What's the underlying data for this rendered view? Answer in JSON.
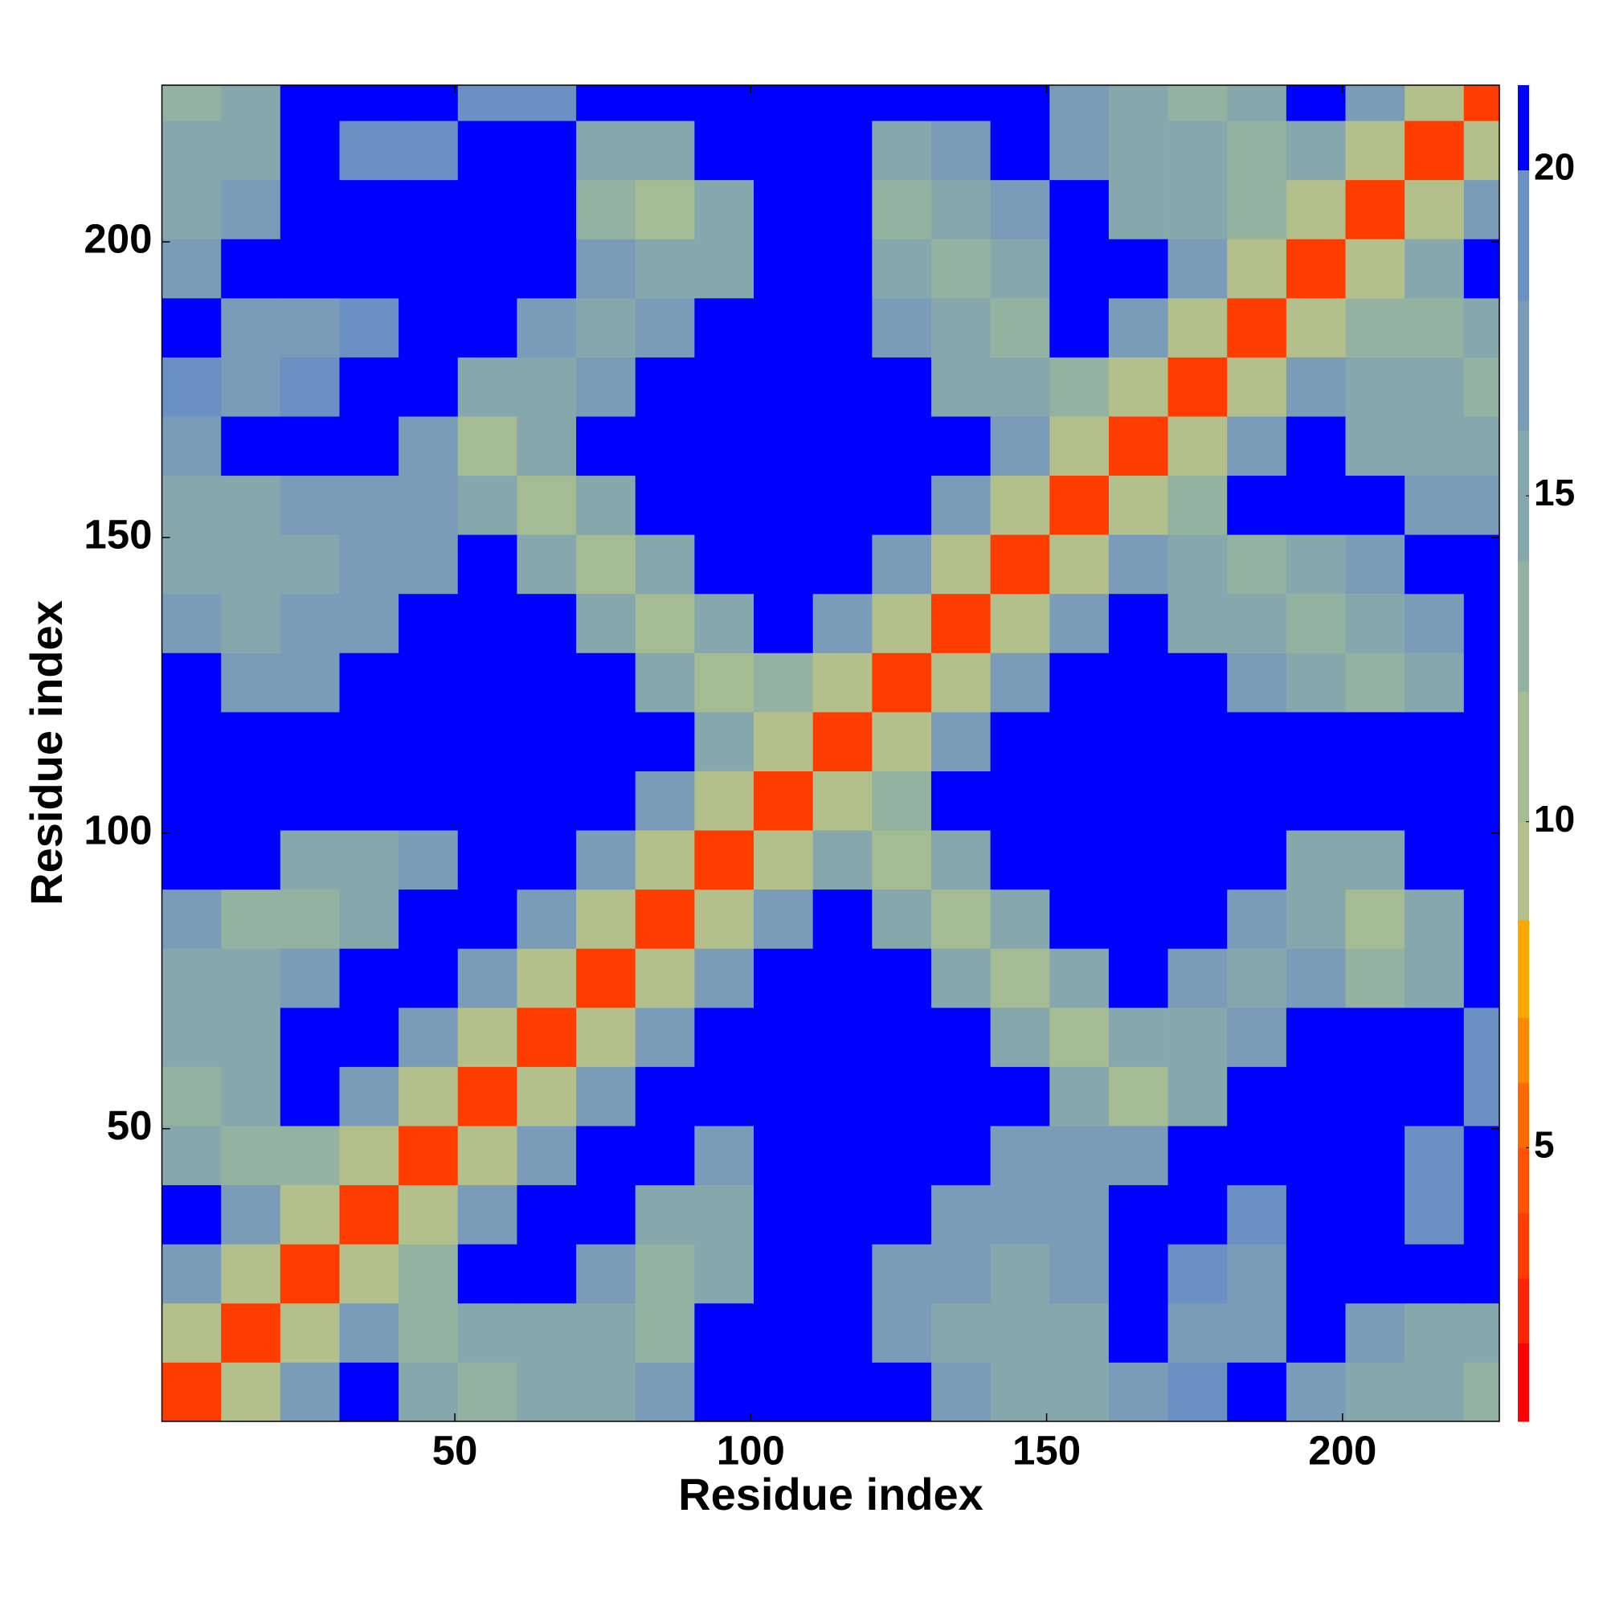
{
  "chart_data": {
    "type": "heatmap",
    "xlabel": "Residue index",
    "ylabel": "Residue index",
    "xlim": [
      0.5,
      226.5
    ],
    "ylim": [
      0.5,
      226.5
    ],
    "xticks": [
      50,
      100,
      150,
      200
    ],
    "yticks": [
      50,
      100,
      150,
      200
    ],
    "xbins": [
      0.5,
      10.5,
      20.5,
      30.5,
      40.5,
      50.5,
      60.5,
      70.5,
      80.5,
      90.5,
      100.5,
      110.5,
      120.5,
      130.5,
      140.5,
      150.5,
      160.5,
      170.5,
      180.5,
      190.5,
      200.5,
      210.5,
      220.5,
      226.5
    ],
    "ybins": [
      0.5,
      10.5,
      20.5,
      30.5,
      40.5,
      50.5,
      60.5,
      70.5,
      80.5,
      90.5,
      100.5,
      110.5,
      120.5,
      130.5,
      140.5,
      150.5,
      160.5,
      170.5,
      180.5,
      190.5,
      200.5,
      210.5,
      220.5,
      226.5
    ],
    "zlim": [
      0.8,
      21.3
    ],
    "zticks": [
      5,
      10,
      15,
      20
    ],
    "colorscale": [
      [
        2,
        "#ff0000"
      ],
      [
        3,
        "#ff2400"
      ],
      [
        4,
        "#ff3c00"
      ],
      [
        5,
        "#ff5200"
      ],
      [
        6,
        "#ff6a00"
      ],
      [
        7,
        "#ff8a00"
      ],
      [
        8.5,
        "#ffa800"
      ],
      [
        10,
        "#b3c08b"
      ],
      [
        12,
        "#a4bb94"
      ],
      [
        14,
        "#94b2a0"
      ],
      [
        16,
        "#86a8ad"
      ],
      [
        18,
        "#7a9cb9"
      ],
      [
        20,
        "#6a90c4"
      ],
      [
        21.3,
        "#0000ff"
      ]
    ],
    "z": [
      [
        4,
        10,
        18,
        21,
        16,
        13,
        15,
        16,
        18,
        21,
        21,
        21,
        21,
        17,
        16,
        16,
        18,
        19,
        21,
        18,
        15,
        15,
        14
      ],
      [
        10,
        4,
        10,
        18,
        13,
        15,
        16,
        15,
        14,
        21,
        21,
        21,
        18,
        16,
        15,
        16,
        21,
        18,
        18,
        21,
        17,
        16,
        16
      ],
      [
        18,
        10,
        4,
        10,
        14,
        21,
        21,
        17,
        14,
        15,
        21,
        21,
        18,
        17,
        16,
        17,
        21,
        19,
        18,
        21,
        21,
        21,
        21
      ],
      [
        21,
        18,
        10,
        4,
        10,
        18,
        21,
        21,
        16,
        16,
        21,
        21,
        21,
        17,
        17,
        17,
        21,
        21,
        19,
        21,
        21,
        19,
        21
      ],
      [
        16,
        13,
        14,
        10,
        4,
        10,
        18,
        21,
        21,
        18,
        21,
        21,
        21,
        21,
        18,
        18,
        18,
        21,
        21,
        21,
        21,
        19,
        21
      ],
      [
        13,
        15,
        21,
        18,
        10,
        4,
        10,
        18,
        21,
        21,
        21,
        21,
        21,
        21,
        21,
        15,
        12,
        16,
        21,
        21,
        21,
        21,
        19
      ],
      [
        15,
        16,
        21,
        21,
        18,
        10,
        4,
        10,
        18,
        21,
        21,
        21,
        21,
        21,
        15,
        12,
        16,
        15,
        17,
        21,
        21,
        21,
        19
      ],
      [
        16,
        15,
        17,
        21,
        21,
        18,
        10,
        4,
        10,
        18,
        21,
        21,
        21,
        15,
        12,
        16,
        21,
        17,
        15,
        17,
        14,
        16,
        21
      ],
      [
        18,
        14,
        14,
        16,
        21,
        21,
        18,
        10,
        4,
        10,
        18,
        21,
        15,
        12,
        16,
        21,
        21,
        21,
        17,
        15,
        12,
        15,
        21
      ],
      [
        21,
        21,
        15,
        16,
        18,
        21,
        21,
        18,
        10,
        4,
        10,
        15,
        12,
        16,
        21,
        21,
        21,
        21,
        21,
        16,
        15,
        21,
        21
      ],
      [
        21,
        21,
        21,
        21,
        21,
        21,
        21,
        21,
        18,
        10,
        4,
        10,
        14,
        21,
        21,
        21,
        21,
        21,
        21,
        21,
        21,
        21,
        21
      ],
      [
        21,
        21,
        21,
        21,
        21,
        21,
        21,
        21,
        21,
        15,
        10,
        4,
        10,
        18,
        21,
        21,
        21,
        21,
        21,
        21,
        21,
        21,
        21
      ],
      [
        21,
        18,
        18,
        21,
        21,
        21,
        21,
        21,
        15,
        12,
        14,
        10,
        4,
        10,
        18,
        21,
        21,
        21,
        17,
        15,
        13,
        16,
        21
      ],
      [
        17,
        16,
        17,
        17,
        21,
        21,
        21,
        15,
        12,
        16,
        21,
        18,
        10,
        4,
        10,
        18,
        21,
        15,
        15,
        13,
        16,
        17,
        21
      ],
      [
        16,
        15,
        16,
        17,
        18,
        21,
        15,
        12,
        16,
        21,
        21,
        21,
        18,
        10,
        4,
        10,
        18,
        15,
        13,
        16,
        17,
        21,
        21
      ],
      [
        16,
        16,
        17,
        17,
        18,
        15,
        12,
        16,
        21,
        21,
        21,
        21,
        21,
        18,
        10,
        4,
        10,
        13,
        21,
        21,
        21,
        17,
        18
      ],
      [
        18,
        21,
        21,
        21,
        18,
        12,
        16,
        21,
        21,
        21,
        21,
        21,
        21,
        21,
        18,
        10,
        4,
        10,
        18,
        21,
        15,
        16,
        15
      ],
      [
        19,
        18,
        19,
        21,
        21,
        16,
        15,
        17,
        21,
        21,
        21,
        21,
        21,
        15,
        15,
        13,
        10,
        4,
        10,
        18,
        16,
        15,
        13
      ],
      [
        21,
        18,
        18,
        19,
        21,
        21,
        17,
        15,
        17,
        21,
        21,
        21,
        17,
        15,
        13,
        21,
        18,
        10,
        4,
        10,
        14,
        13,
        16
      ],
      [
        18,
        21,
        21,
        21,
        21,
        21,
        21,
        17,
        15,
        16,
        21,
        21,
        15,
        13,
        16,
        21,
        21,
        18,
        10,
        4,
        10,
        15,
        21
      ],
      [
        15,
        17,
        21,
        21,
        21,
        21,
        21,
        14,
        12,
        15,
        21,
        21,
        13,
        16,
        17,
        21,
        15,
        16,
        14,
        10,
        4,
        10,
        18
      ],
      [
        15,
        16,
        21,
        19,
        19,
        21,
        21,
        16,
        15,
        21,
        21,
        21,
        16,
        17,
        21,
        17,
        16,
        15,
        13,
        15,
        10,
        4,
        10
      ],
      [
        14,
        16,
        21,
        21,
        21,
        19,
        19,
        21,
        21,
        21,
        21,
        21,
        21,
        21,
        21,
        18,
        15,
        13,
        16,
        21,
        18,
        10,
        4
      ]
    ]
  }
}
